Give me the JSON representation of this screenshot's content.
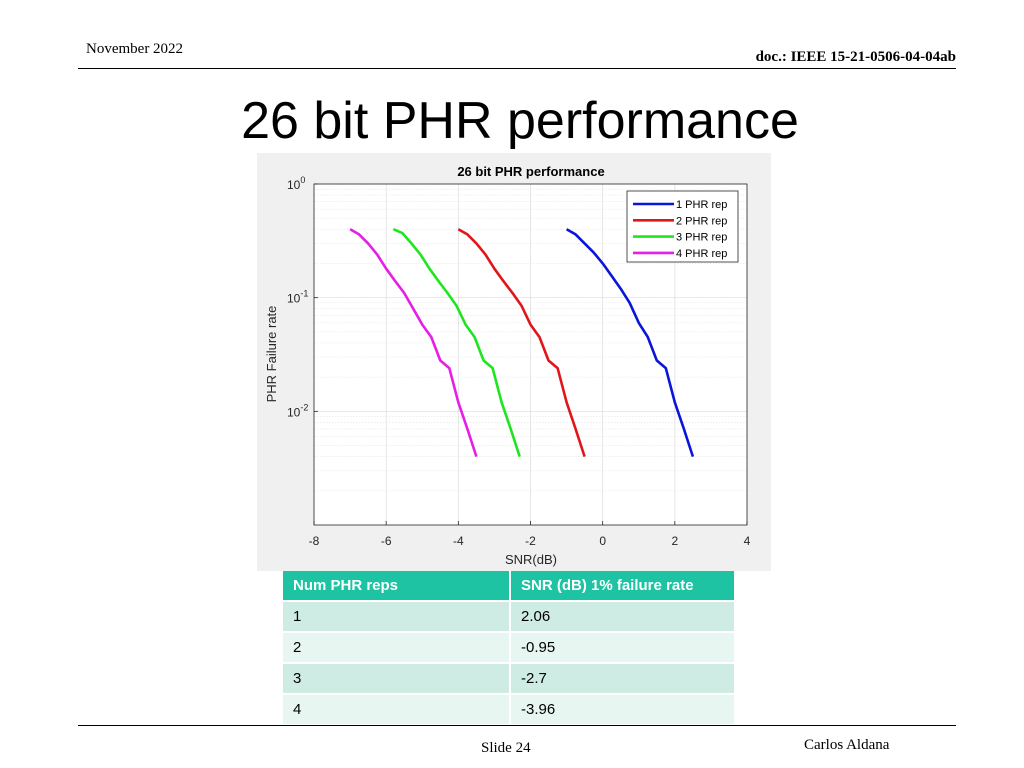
{
  "header": {
    "date": "November 2022",
    "doc": "doc.: IEEE 15-21-0506-04-04ab"
  },
  "slide_title": "26 bit PHR performance",
  "chart_data": {
    "type": "line",
    "title": "26 bit PHR performance",
    "xlabel": "SNR(dB)",
    "ylabel": "PHR Failure rate",
    "xlim": [
      -8,
      4
    ],
    "ylim": [
      0.001,
      1
    ],
    "yscale": "log",
    "grid": true,
    "legend_position": "top-right",
    "xticks": [
      "-8",
      "-6",
      "-4",
      "-2",
      "0",
      "2",
      "4"
    ],
    "yticks": [
      {
        "value": 1,
        "base": "10",
        "exp": "0"
      },
      {
        "value": 0.1,
        "base": "10",
        "exp": "-1"
      },
      {
        "value": 0.01,
        "base": "10",
        "exp": "-2"
      }
    ],
    "series": [
      {
        "name": "1 PHR rep",
        "color": "#0b14d9",
        "x": [
          -1.0,
          -0.75,
          -0.5,
          -0.25,
          0.0,
          0.25,
          0.5,
          0.75,
          1.0,
          1.25,
          1.5,
          1.75,
          2.0,
          2.25,
          2.5
        ],
        "y": [
          0.4,
          0.36,
          0.3,
          0.25,
          0.2,
          0.155,
          0.12,
          0.09,
          0.06,
          0.045,
          0.028,
          0.024,
          0.012,
          0.007,
          0.004
        ]
      },
      {
        "name": "2 PHR rep",
        "color": "#e0161a",
        "x": [
          -4.0,
          -3.75,
          -3.5,
          -3.25,
          -3.0,
          -2.75,
          -2.5,
          -2.25,
          -2.0,
          -1.75,
          -1.5,
          -1.25,
          -1.0,
          -0.75,
          -0.5
        ],
        "y": [
          0.4,
          0.36,
          0.3,
          0.24,
          0.18,
          0.14,
          0.11,
          0.085,
          0.058,
          0.045,
          0.028,
          0.024,
          0.012,
          0.007,
          0.004
        ]
      },
      {
        "name": "3 PHR rep",
        "color": "#1ee61e",
        "x": [
          -5.8,
          -5.55,
          -5.3,
          -5.05,
          -4.8,
          -4.55,
          -4.3,
          -4.05,
          -3.8,
          -3.55,
          -3.3,
          -3.05,
          -2.8,
          -2.55,
          -2.3
        ],
        "y": [
          0.4,
          0.37,
          0.3,
          0.24,
          0.18,
          0.14,
          0.11,
          0.085,
          0.058,
          0.045,
          0.028,
          0.024,
          0.012,
          0.007,
          0.004
        ]
      },
      {
        "name": "4 PHR rep",
        "color": "#e61ee6",
        "x": [
          -7.0,
          -6.75,
          -6.5,
          -6.25,
          -6.0,
          -5.75,
          -5.5,
          -5.25,
          -5.0,
          -4.75,
          -4.5,
          -4.25,
          -4.0,
          -3.75,
          -3.5
        ],
        "y": [
          0.4,
          0.36,
          0.3,
          0.24,
          0.18,
          0.14,
          0.11,
          0.08,
          0.058,
          0.045,
          0.028,
          0.024,
          0.012,
          0.007,
          0.004
        ]
      }
    ]
  },
  "table": {
    "headers": [
      "Num PHR reps",
      "SNR (dB) 1% failure rate"
    ],
    "rows": [
      [
        "1",
        "2.06"
      ],
      [
        "2",
        "-0.95"
      ],
      [
        "3",
        "-2.7"
      ],
      [
        "4",
        "-3.96"
      ]
    ]
  },
  "footer": {
    "slide": "Slide 24",
    "author": "Carlos Aldana"
  }
}
